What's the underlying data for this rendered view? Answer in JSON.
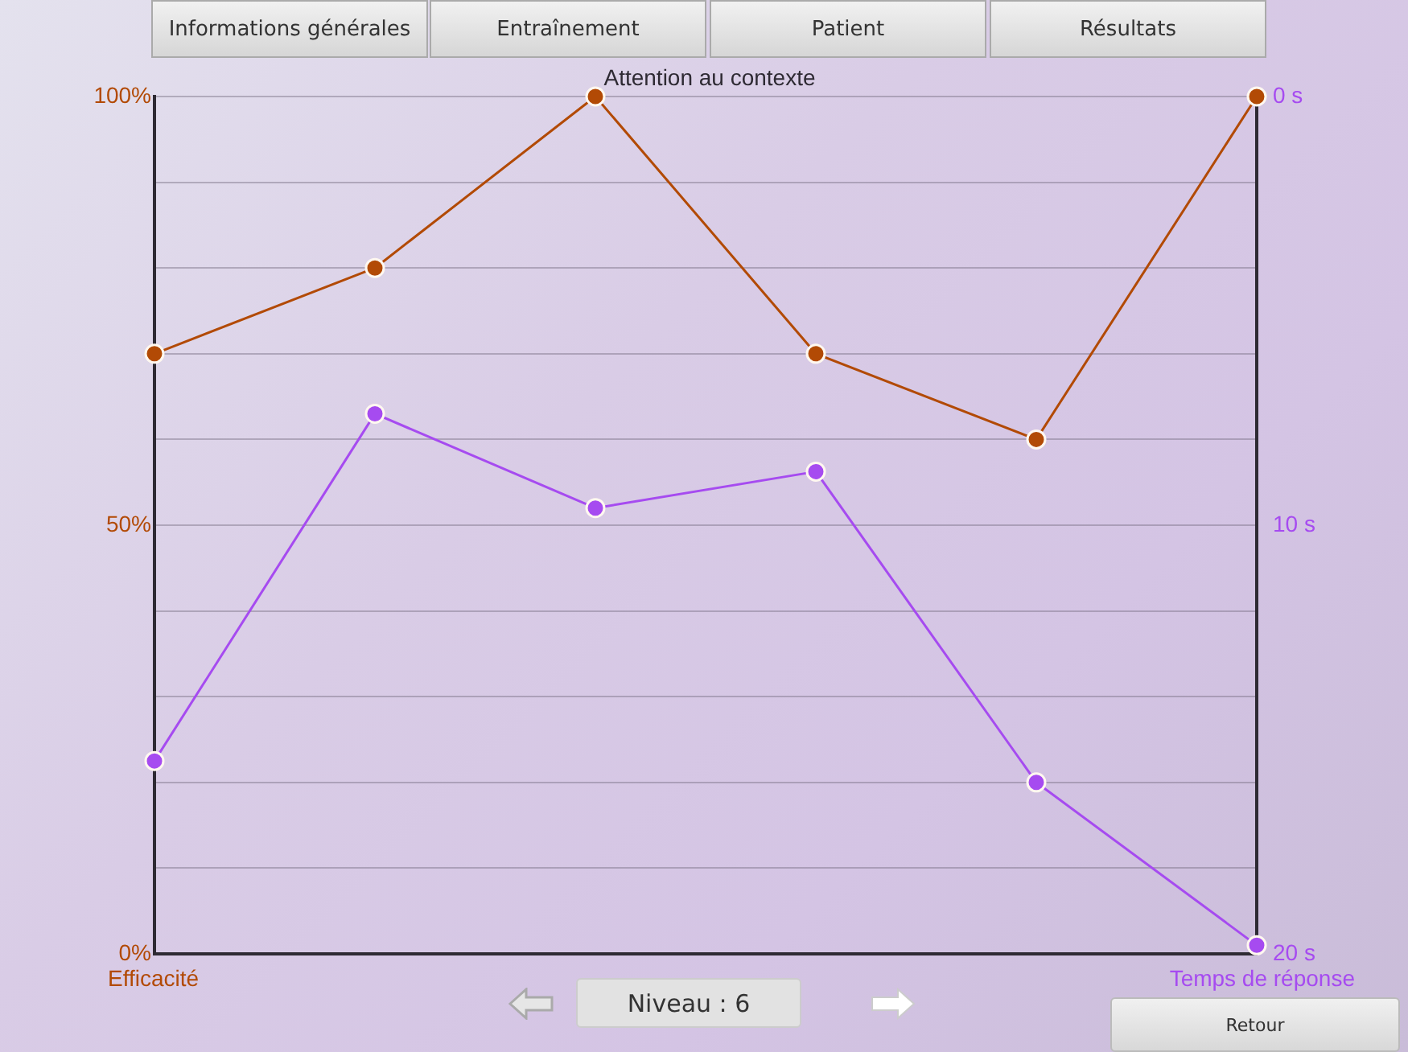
{
  "chart_data": {
    "type": "line",
    "title": "Attention au contexte",
    "ylabel": "Efficacité",
    "y2label": "Temps de réponse",
    "categories": [
      null,
      null,
      null,
      null,
      null,
      null
    ],
    "series": [
      {
        "color": "#b24a05",
        "values": [
          70,
          80,
          100,
          70,
          60,
          100
        ]
      },
      {
        "color": "#a64bf0",
        "axis": "y2",
        "values": [
          15.5,
          7.4,
          9.6,
          8.75,
          16.0,
          19.8
        ]
      }
    ],
    "ylim": [
      0,
      100
    ],
    "yticks": [
      {
        "value": 0,
        "label": "0%"
      },
      {
        "value": 10,
        "label": null
      },
      {
        "value": 20,
        "label": null
      },
      {
        "value": 30,
        "label": null
      },
      {
        "value": 40,
        "label": null
      },
      {
        "value": 50,
        "label": "50%"
      },
      {
        "value": 60,
        "label": null
      },
      {
        "value": 70,
        "label": null
      },
      {
        "value": 80,
        "label": null
      },
      {
        "value": 90,
        "label": null
      },
      {
        "value": 100,
        "label": "100%"
      }
    ],
    "y2lim": [
      20,
      0
    ],
    "y2ticks": [
      {
        "value": 0,
        "label": "0 s"
      },
      {
        "value": 10,
        "label": "10 s"
      },
      {
        "value": 20,
        "label": "20 s"
      }
    ],
    "grid": "y",
    "legend": false,
    "marker": "circle",
    "line_style": "solid",
    "annotations": [
      "Informations générales",
      "Entraînement",
      "Patient",
      "Résultats",
      "Niveau : 6",
      "Retour"
    ]
  }
}
